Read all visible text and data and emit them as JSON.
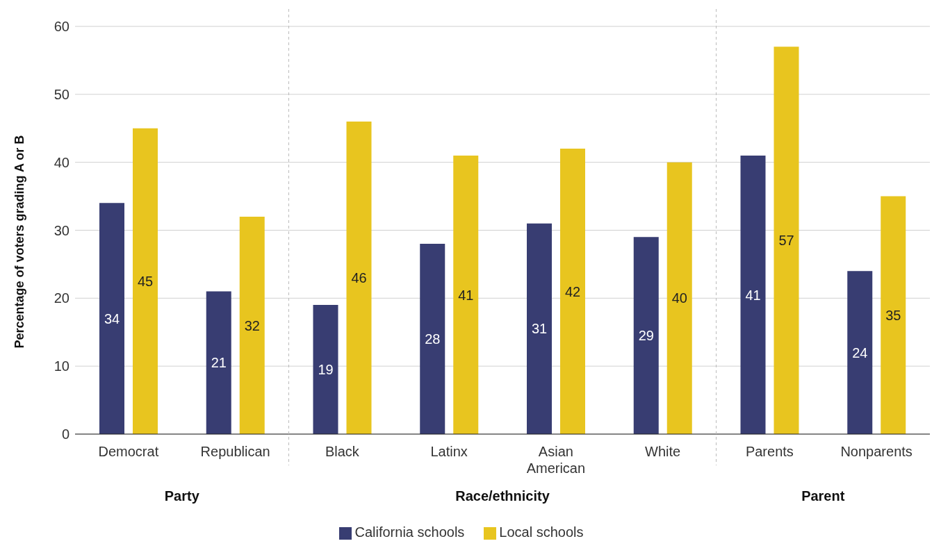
{
  "chart_data": {
    "type": "bar",
    "ylabel": "Percentage of voters grading A or B",
    "categories": [
      "Democrat",
      "Republican",
      "Black",
      "Latinx",
      "Asian American",
      "White",
      "Parents",
      "Nonparents"
    ],
    "series": [
      {
        "name": "California schools",
        "color": "#383d72",
        "values": [
          34,
          21,
          19,
          28,
          31,
          29,
          41,
          24
        ]
      },
      {
        "name": "Local schools",
        "color": "#e8c51f",
        "values": [
          45,
          32,
          46,
          41,
          42,
          40,
          57,
          35
        ]
      }
    ],
    "ylim": [
      0,
      60
    ],
    "yticks": [
      0,
      10,
      20,
      30,
      40,
      50,
      60
    ],
    "grid": "y",
    "legend": "bottom",
    "data_labels": true,
    "annotations": [
      "Party",
      "Race/ethnicity",
      "Parent"
    ]
  }
}
